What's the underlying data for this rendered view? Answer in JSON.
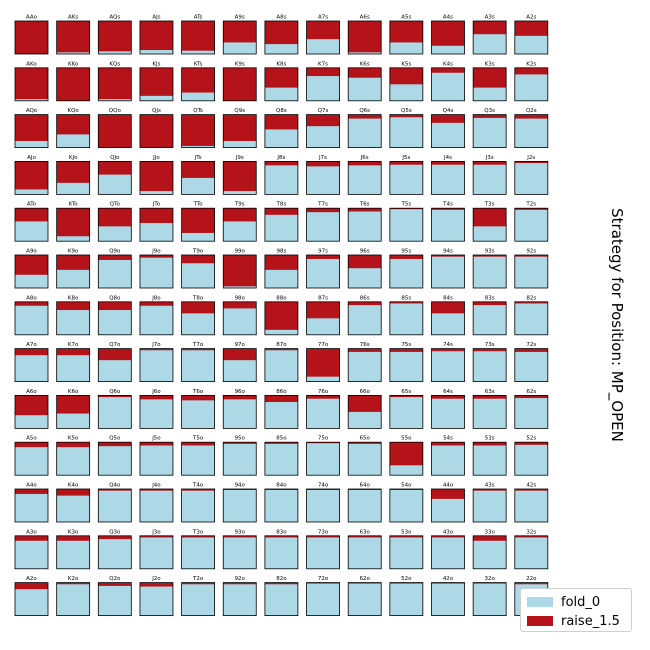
{
  "title": "Strategy for Position: MP_OPEN",
  "colors": {
    "fold": "#add8e6",
    "raise": "#b5131a",
    "border": "#000000"
  },
  "legend": [
    {
      "label": "fold_0",
      "color": "#add8e6"
    },
    {
      "label": "raise_1.5",
      "color": "#b5131a"
    }
  ],
  "chart_data": {
    "type": "grid of stacked bars",
    "series": [
      "fold_0",
      "raise_1.5"
    ],
    "value_meaning": "raise_1.5 frequency per hand; fold_0 = 1 - raise",
    "rows": [
      {
        "hands": [
          "AAo",
          "AKs",
          "AQs",
          "AJs",
          "ATs",
          "A9s",
          "A8s",
          "A7s",
          "A6s",
          "A5s",
          "A4s",
          "A3s",
          "A2s"
        ],
        "raise": [
          1.0,
          0.95,
          0.92,
          0.88,
          0.9,
          0.65,
          0.7,
          0.55,
          0.95,
          0.65,
          0.75,
          0.4,
          0.45
        ]
      },
      {
        "hands": [
          "AKo",
          "KKo",
          "KQs",
          "KJs",
          "KTs",
          "K9s",
          "K8s",
          "K7s",
          "K6s",
          "K5s",
          "K4s",
          "K3s",
          "K2s"
        ],
        "raise": [
          0.95,
          1.0,
          0.95,
          0.85,
          0.75,
          1.0,
          0.6,
          0.25,
          0.3,
          0.5,
          0.15,
          0.6,
          0.2
        ]
      },
      {
        "hands": [
          "AQo",
          "KQo",
          "QQo",
          "QJs",
          "QTs",
          "Q9s",
          "Q8s",
          "Q7s",
          "Q6s",
          "Q5s",
          "Q4s",
          "Q3s",
          "Q2s"
        ],
        "raise": [
          0.8,
          0.6,
          1.0,
          1.0,
          0.95,
          0.8,
          0.45,
          0.35,
          0.12,
          0.08,
          0.25,
          0.1,
          0.12
        ]
      },
      {
        "hands": [
          "AJo",
          "KJo",
          "QJo",
          "JJo",
          "JTs",
          "J9s",
          "J8s",
          "J7s",
          "J6s",
          "J5s",
          "J4s",
          "J3s",
          "J2s"
        ],
        "raise": [
          0.85,
          0.65,
          0.4,
          0.9,
          0.5,
          0.9,
          0.12,
          0.15,
          0.12,
          0.1,
          0.1,
          0.1,
          0.05
        ]
      },
      {
        "hands": [
          "ATo",
          "KTo",
          "QTo",
          "JTo",
          "TTo",
          "T9s",
          "T8s",
          "T7s",
          "T6s",
          "T5s",
          "T4s",
          "T3s",
          "T2s"
        ],
        "raise": [
          0.4,
          0.85,
          0.55,
          0.45,
          0.75,
          0.4,
          0.2,
          0.12,
          0.1,
          0.03,
          0.05,
          0.55,
          0.05
        ]
      },
      {
        "hands": [
          "A9o",
          "K9o",
          "Q9o",
          "J9o",
          "T9o",
          "99o",
          "98s",
          "97s",
          "96s",
          "95s",
          "94s",
          "93s",
          "92s"
        ],
        "raise": [
          0.6,
          0.45,
          0.15,
          0.08,
          0.25,
          0.95,
          0.45,
          0.12,
          0.4,
          0.12,
          0.05,
          0.05,
          0.05
        ]
      },
      {
        "hands": [
          "A8o",
          "K8o",
          "Q8o",
          "J8o",
          "T8o",
          "98o",
          "88o",
          "87s",
          "86s",
          "85s",
          "84s",
          "83s",
          "82s"
        ],
        "raise": [
          0.12,
          0.25,
          0.25,
          0.12,
          0.35,
          0.2,
          0.85,
          0.5,
          0.1,
          0.05,
          0.35,
          0.1,
          0.05
        ]
      },
      {
        "hands": [
          "A7o",
          "K7o",
          "Q7o",
          "J7o",
          "T7o",
          "97o",
          "87o",
          "77o",
          "76s",
          "75s",
          "74s",
          "73s",
          "72s"
        ],
        "raise": [
          0.2,
          0.2,
          0.35,
          0.05,
          0.05,
          0.35,
          0.05,
          0.85,
          0.1,
          0.1,
          0.08,
          0.08,
          0.1
        ]
      },
      {
        "hands": [
          "A6o",
          "K6o",
          "Q6o",
          "J6o",
          "T6o",
          "96o",
          "86o",
          "76o",
          "66o",
          "65s",
          "64s",
          "63s",
          "62s"
        ],
        "raise": [
          0.6,
          0.55,
          0.05,
          0.12,
          0.15,
          0.12,
          0.2,
          0.1,
          0.5,
          0.05,
          0.1,
          0.1,
          0.08
        ]
      },
      {
        "hands": [
          "A5o",
          "K5o",
          "Q5o",
          "J5o",
          "T5o",
          "95o",
          "85o",
          "75o",
          "65o",
          "55o",
          "54s",
          "53s",
          "52s"
        ],
        "raise": [
          0.15,
          0.15,
          0.12,
          0.1,
          0.1,
          0.05,
          0.05,
          0.03,
          0.05,
          0.7,
          0.1,
          0.1,
          0.08
        ]
      },
      {
        "hands": [
          "A4o",
          "K4o",
          "Q4o",
          "J4o",
          "T4o",
          "94o",
          "84o",
          "74o",
          "64o",
          "54o",
          "44o",
          "43s",
          "42s"
        ],
        "raise": [
          0.15,
          0.2,
          0.05,
          0.05,
          0.05,
          0.03,
          0.03,
          0.03,
          0.03,
          0.03,
          0.3,
          0.05,
          0.05
        ]
      },
      {
        "hands": [
          "A3o",
          "K3o",
          "Q3o",
          "J3o",
          "T3o",
          "93o",
          "83o",
          "73o",
          "63o",
          "53o",
          "43o",
          "33o",
          "32s"
        ],
        "raise": [
          0.15,
          0.15,
          0.1,
          0.05,
          0.05,
          0.05,
          0.05,
          0.05,
          0.05,
          0.05,
          0.05,
          0.15,
          0.05
        ]
      },
      {
        "hands": [
          "A2o",
          "K2o",
          "Q2o",
          "J2o",
          "T2o",
          "92o",
          "82o",
          "72o",
          "62o",
          "52o",
          "42o",
          "32o",
          "22o"
        ],
        "raise": [
          0.2,
          0.05,
          0.1,
          0.12,
          0.05,
          0.05,
          0.05,
          0.03,
          0.03,
          0.03,
          0.03,
          0.03,
          0.05
        ]
      }
    ]
  }
}
